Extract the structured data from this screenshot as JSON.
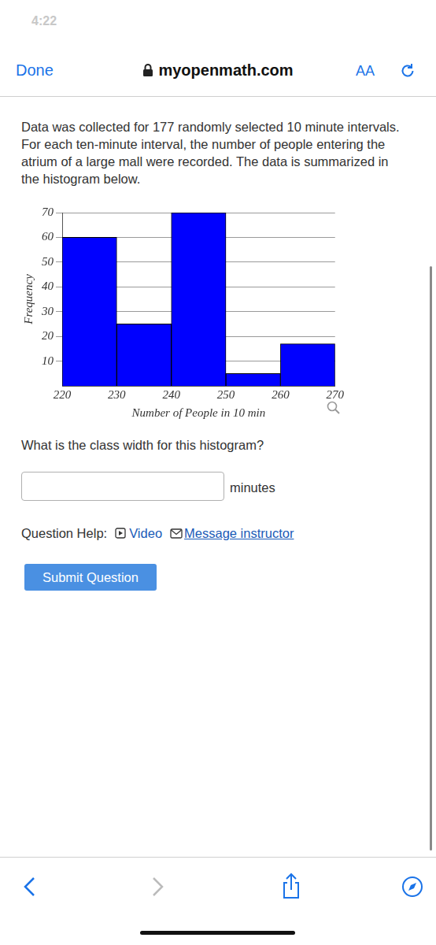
{
  "status_bar": {
    "time": "4:22"
  },
  "browser_bar": {
    "done": "Done",
    "url": "myopenmath.com",
    "text_size": "AA"
  },
  "question": {
    "intro": "Data was collected for 177 randomly selected 10 minute intervals. For each ten-minute interval, the number of people entering the atrium of a large mall were recorded. The data is summarized in the histogram below.",
    "prompt": "What is the class width for this histogram?",
    "unit": "minutes",
    "help_label": "Question Help:",
    "help_links": [
      "Video",
      "Message instructor"
    ],
    "submit": "Submit Question"
  },
  "chart_data": {
    "type": "histogram",
    "bins": [
      220,
      230,
      240,
      250,
      260,
      270
    ],
    "values": [
      60,
      25,
      70,
      5,
      17
    ],
    "color": "#0000ff",
    "xlabel": "Number of People in 10 min",
    "ylabel": "Frequency",
    "xlim": [
      220,
      270
    ],
    "xticks": [
      220,
      230,
      240,
      250,
      260,
      270
    ],
    "ylim": [
      0,
      70
    ],
    "yticks": [
      10,
      20,
      30,
      40,
      50,
      60,
      70
    ],
    "grid": true
  }
}
